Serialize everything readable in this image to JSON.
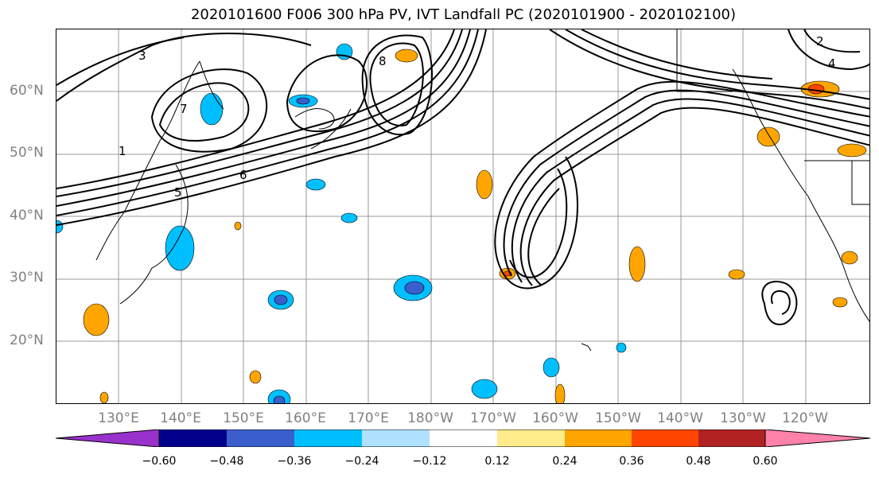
{
  "title": "2020101600 F006 300 hPa PV, IVT Landfall PC (2020101900 - 2020102100)",
  "lat_labels": [
    "60°N",
    "50°N",
    "40°N",
    "30°N",
    "20°N"
  ],
  "lon_labels": [
    "130°E",
    "140°E",
    "150°E",
    "160°E",
    "170°E",
    "180°W",
    "170°W",
    "160°W",
    "150°W",
    "140°W",
    "130°W",
    "120°W"
  ],
  "colorbar": {
    "colors": [
      "#9932cc",
      "#00008b",
      "#3a5fcd",
      "#00bfff",
      "#b0e2ff",
      "#ffffff",
      "#ffec8b",
      "#ffa500",
      "#ff4500",
      "#b22222",
      "#ff82ab"
    ],
    "extend_colors": {
      "min": "#9932cc",
      "max": "#ff82ab"
    },
    "ticks": [
      "−0.60",
      "−0.48",
      "−0.36",
      "−0.24",
      "−0.12",
      "0.12",
      "0.24",
      "0.36",
      "0.48",
      "0.60"
    ]
  },
  "contour_labels": [
    "8",
    "3",
    "2",
    "1",
    "6",
    "4",
    "5",
    "7"
  ],
  "map": {
    "lat_range": [
      10,
      70
    ],
    "lon_range_deg_east": [
      120,
      250
    ],
    "gridlines": true,
    "coastline_color": "#000000",
    "contour_color": "#000000"
  }
}
